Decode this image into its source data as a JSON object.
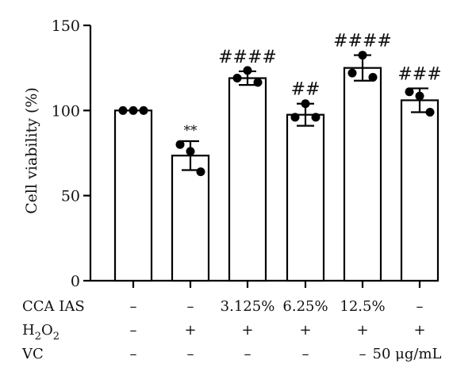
{
  "chart_data": {
    "type": "bar",
    "ylabel": "Cell viability (%)",
    "ylim": [
      0,
      150
    ],
    "yticks": [
      0,
      50,
      100,
      150
    ],
    "grid": false,
    "bar_fill": "#ffffff",
    "stroke_color": "#000000",
    "groups": [
      {
        "mean": 100,
        "error": 0,
        "points": [
          100,
          100,
          100
        ],
        "significance": ""
      },
      {
        "mean": 73.5,
        "error": 8.5,
        "points": [
          80,
          76,
          64
        ],
        "significance": "**"
      },
      {
        "mean": 119,
        "error": 4,
        "points": [
          119,
          123.5,
          116.5
        ],
        "significance": "####"
      },
      {
        "mean": 97.5,
        "error": 6.5,
        "points": [
          96,
          104,
          96
        ],
        "significance": "##"
      },
      {
        "mean": 125,
        "error": 7.5,
        "points": [
          122,
          132.5,
          119.5
        ],
        "significance": "####"
      },
      {
        "mean": 106,
        "error": 7,
        "points": [
          111,
          108.5,
          99
        ],
        "significance": "###"
      }
    ]
  },
  "conditions": [
    {
      "label": "CCA IAS",
      "values": [
        "–",
        "–",
        "3.125%",
        "6.25%",
        "12.5%",
        "–"
      ]
    },
    {
      "label_main": "H",
      "label_sub1": "2",
      "label_mid": "O",
      "label_sub2": "2",
      "values": [
        "–",
        "+",
        "+",
        "+",
        "+",
        "+"
      ]
    },
    {
      "label": "VC",
      "values": [
        "–",
        "–",
        "–",
        "–",
        "–",
        "50 μg/mL"
      ]
    }
  ]
}
